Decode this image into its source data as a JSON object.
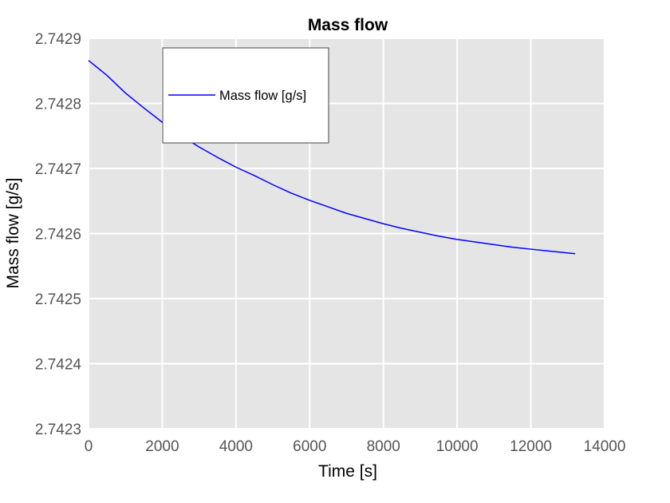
{
  "chart_data": {
    "type": "line",
    "title": "Mass flow",
    "xlabel": "Time [s]",
    "ylabel": "Mass flow [g/s]",
    "xlim": [
      0,
      14000
    ],
    "ylim": [
      2.7423,
      2.7429
    ],
    "xticks": [
      "0",
      "2000",
      "4000",
      "6000",
      "8000",
      "10000",
      "12000",
      "14000"
    ],
    "yticks": [
      "2.7429",
      "2.7428",
      "2.7427",
      "2.7426",
      "2.7425",
      "2.7424",
      "2.7423"
    ],
    "grid": true,
    "legend_position": "top-left",
    "series": [
      {
        "name": "Mass flow [g/s]",
        "color": "#0000ff",
        "x": [
          0,
          500,
          1000,
          1500,
          2000,
          2500,
          3000,
          3500,
          4000,
          4500,
          5000,
          5500,
          6000,
          6500,
          7000,
          7500,
          8000,
          8500,
          9000,
          9500,
          10000,
          10500,
          11000,
          11500,
          12000,
          12500,
          13200
        ],
        "y": [
          2.742866,
          2.742843,
          2.742816,
          2.742793,
          2.742771,
          2.742751,
          2.742733,
          2.742717,
          2.742702,
          2.742689,
          2.742675,
          2.742662,
          2.742651,
          2.742641,
          2.742631,
          2.742623,
          2.742615,
          2.742608,
          2.742602,
          2.742596,
          2.742591,
          2.742587,
          2.742583,
          2.742579,
          2.742576,
          2.742573,
          2.742569
        ]
      }
    ]
  },
  "colors": {
    "plot_background": "#e5e5e5",
    "grid": "#ffffff",
    "line": "#0000ff"
  }
}
